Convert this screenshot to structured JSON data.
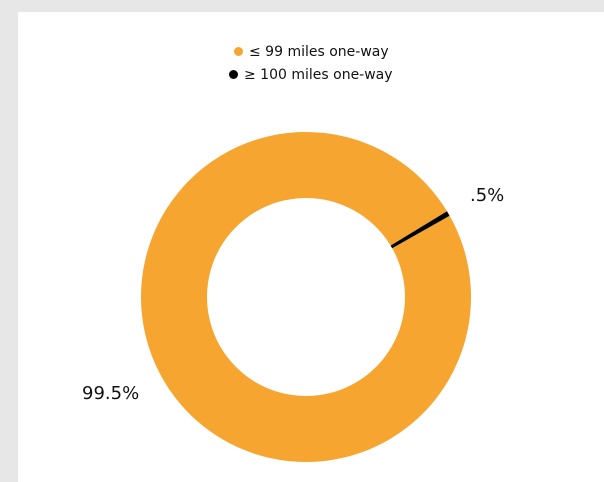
{
  "chart_data": {
    "type": "pie",
    "subtype": "donut",
    "title": "",
    "legend_position": "top-center",
    "series": [
      {
        "name": "≤ 99 miles one-way",
        "value": 99.5,
        "label": "99.5%",
        "color": "#f6a530"
      },
      {
        "name": "≥ 100 miles one-way",
        "value": 0.5,
        "label": ".5%",
        "color": "#000000"
      }
    ]
  },
  "colors": {
    "page_background": "#e7e7e8",
    "panel_background": "#ffffff",
    "text": "#111111"
  }
}
